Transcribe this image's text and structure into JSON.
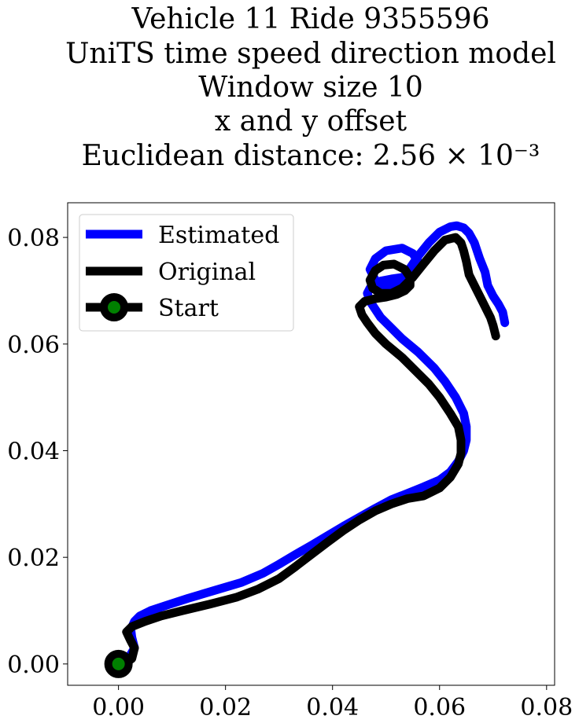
{
  "chart_data": {
    "type": "line",
    "title_lines": [
      "Vehicle 11 Ride 9355596",
      "UniTS time speed direction model",
      "Window size 10",
      "x and y offset",
      "Euclidean distance: 2.56 × 10⁻³"
    ],
    "xlabel": "",
    "ylabel": "",
    "xlim": [
      -0.0095,
      0.0815
    ],
    "ylim": [
      -0.004,
      0.0865
    ],
    "xticks": [
      0.0,
      0.02,
      0.04,
      0.06,
      0.08
    ],
    "xtick_labels": [
      "0.00",
      "0.02",
      "0.04",
      "0.06",
      "0.08"
    ],
    "yticks": [
      0.0,
      0.02,
      0.04,
      0.06,
      0.08
    ],
    "ytick_labels": [
      "0.00",
      "0.02",
      "0.04",
      "0.06",
      "0.08"
    ],
    "grid": false,
    "legend": {
      "placement": "top-left",
      "entries": [
        "Estimated",
        "Original",
        "Start"
      ]
    },
    "series": [
      {
        "name": "Estimated",
        "color": "#0000ff",
        "x": [
          0.0,
          0.0017,
          0.003,
          0.0025,
          0.0023,
          0.003,
          0.004,
          0.006,
          0.009,
          0.013,
          0.018,
          0.023,
          0.027,
          0.03,
          0.033,
          0.036,
          0.039,
          0.042,
          0.045,
          0.048,
          0.051,
          0.054,
          0.057,
          0.06,
          0.062,
          0.0635,
          0.0645,
          0.065,
          0.065,
          0.0645,
          0.063,
          0.061,
          0.059,
          0.056,
          0.053,
          0.051,
          0.049,
          0.048,
          0.047,
          0.0465,
          0.047,
          0.048,
          0.049,
          0.051,
          0.053,
          0.055,
          0.056,
          0.056,
          0.055,
          0.053,
          0.05,
          0.048,
          0.047,
          0.048,
          0.05,
          0.052,
          0.054,
          0.056,
          0.058,
          0.06,
          0.062,
          0.0632,
          0.0645,
          0.0655,
          0.0665,
          0.0675,
          0.0685,
          0.069,
          0.07,
          0.071,
          0.0718,
          0.0722
        ],
        "y": [
          0.0,
          0.0008,
          0.003,
          0.005,
          0.0065,
          0.008,
          0.009,
          0.01,
          0.011,
          0.0123,
          0.0138,
          0.0153,
          0.017,
          0.0187,
          0.0205,
          0.0222,
          0.024,
          0.0258,
          0.0275,
          0.0292,
          0.0308,
          0.032,
          0.0332,
          0.0345,
          0.036,
          0.038,
          0.04,
          0.042,
          0.0445,
          0.047,
          0.05,
          0.053,
          0.0555,
          0.0585,
          0.061,
          0.063,
          0.065,
          0.0665,
          0.068,
          0.0695,
          0.0705,
          0.0712,
          0.0718,
          0.0722,
          0.0725,
          0.073,
          0.0742,
          0.0755,
          0.077,
          0.078,
          0.0775,
          0.076,
          0.074,
          0.072,
          0.0705,
          0.071,
          0.0735,
          0.0765,
          0.079,
          0.081,
          0.082,
          0.0822,
          0.0818,
          0.0808,
          0.079,
          0.076,
          0.0735,
          0.071,
          0.069,
          0.0675,
          0.066,
          0.064
        ]
      },
      {
        "name": "Original",
        "color": "#000000",
        "x": [
          0.0,
          0.0015,
          0.0025,
          0.003,
          0.0022,
          0.0015,
          0.0025,
          0.005,
          0.008,
          0.012,
          0.017,
          0.022,
          0.026,
          0.03,
          0.033,
          0.036,
          0.039,
          0.042,
          0.045,
          0.048,
          0.051,
          0.054,
          0.057,
          0.06,
          0.062,
          0.0635,
          0.064,
          0.064,
          0.0635,
          0.062,
          0.06,
          0.058,
          0.056,
          0.053,
          0.05,
          0.048,
          0.0465,
          0.0455,
          0.045,
          0.046,
          0.048,
          0.05,
          0.052,
          0.0535,
          0.0545,
          0.0545,
          0.0535,
          0.0515,
          0.0495,
          0.048,
          0.047,
          0.0475,
          0.049,
          0.051,
          0.053,
          0.055,
          0.057,
          0.059,
          0.061,
          0.063,
          0.064,
          0.0645,
          0.065,
          0.0655,
          0.0665,
          0.0675,
          0.0685,
          0.0695,
          0.07,
          0.0705
        ],
        "y": [
          0.0,
          0.0003,
          0.001,
          0.003,
          0.0045,
          0.006,
          0.007,
          0.008,
          0.009,
          0.01,
          0.0112,
          0.0125,
          0.014,
          0.016,
          0.0182,
          0.0205,
          0.0228,
          0.025,
          0.027,
          0.0287,
          0.03,
          0.031,
          0.0315,
          0.033,
          0.035,
          0.0375,
          0.0395,
          0.042,
          0.0445,
          0.047,
          0.05,
          0.0525,
          0.0545,
          0.0575,
          0.06,
          0.062,
          0.064,
          0.0655,
          0.067,
          0.068,
          0.0685,
          0.0688,
          0.0693,
          0.07,
          0.071,
          0.0725,
          0.074,
          0.075,
          0.0748,
          0.0738,
          0.072,
          0.0705,
          0.0695,
          0.0695,
          0.0705,
          0.0725,
          0.075,
          0.0775,
          0.0795,
          0.08,
          0.079,
          0.0775,
          0.0755,
          0.073,
          0.071,
          0.069,
          0.067,
          0.065,
          0.0635,
          0.0615
        ]
      }
    ],
    "start_point": {
      "name": "Start",
      "x": 0.0,
      "y": 0.0,
      "edge_color": "#000000",
      "face_color": "#008000"
    }
  }
}
